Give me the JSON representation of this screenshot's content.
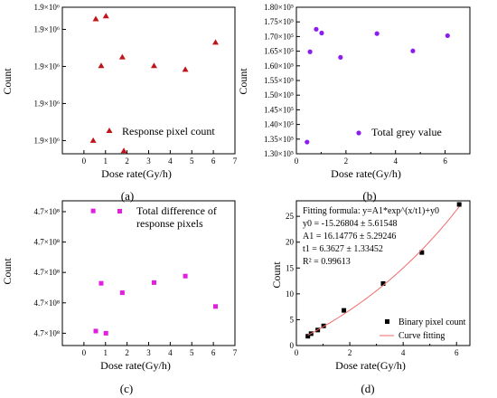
{
  "chart_data": [
    {
      "id": "a",
      "type": "scatter",
      "panel_label": "(a)",
      "xlabel": "Dose rate(Gy/h)",
      "ylabel": "Count",
      "xlim": [
        -1,
        7
      ],
      "xticks": [
        "0",
        "1",
        "2",
        "3",
        "4",
        "5",
        "6",
        "7"
      ],
      "ylim": [
        0,
        1
      ],
      "yticks": [
        {
          "v": 0.09,
          "label": "1.9×10⁶"
        },
        {
          "v": 0.343,
          "label": "1.9×10⁶"
        },
        {
          "v": 0.596,
          "label": "1.9×10⁶"
        },
        {
          "v": 0.849,
          "label": "1.9×10⁶"
        },
        {
          "v": 1.0,
          "label": "1.9×10⁶"
        }
      ],
      "marker": "triangle",
      "color": "#c0141b",
      "legend": "Response pixel count",
      "legend_position": "bottom-right",
      "points": [
        {
          "x": 0.43,
          "y": 0.09
        },
        {
          "x": 0.55,
          "y": 0.92
        },
        {
          "x": 0.8,
          "y": 0.6
        },
        {
          "x": 1.02,
          "y": 0.94
        },
        {
          "x": 1.78,
          "y": 0.66
        },
        {
          "x": 1.85,
          "y": 0.02
        },
        {
          "x": 3.25,
          "y": 0.6
        },
        {
          "x": 4.7,
          "y": 0.575
        },
        {
          "x": 6.1,
          "y": 0.76
        }
      ]
    },
    {
      "id": "b",
      "type": "scatter",
      "panel_label": "(b)",
      "xlabel": "Dose rate(Gy/h)",
      "ylabel": "Count",
      "xlim": [
        0,
        7
      ],
      "xticks": [
        "0",
        "2",
        "4",
        "6"
      ],
      "xtick_values": [
        0,
        2,
        4,
        6
      ],
      "ylim": [
        1.3,
        1.8
      ],
      "yticks": [
        {
          "v": 1.3,
          "label": "1.30×10⁵"
        },
        {
          "v": 1.35,
          "label": "1.35×10⁵"
        },
        {
          "v": 1.4,
          "label": "1.40×10⁵"
        },
        {
          "v": 1.45,
          "label": "1.45×10⁵"
        },
        {
          "v": 1.5,
          "label": "1.50×10⁵"
        },
        {
          "v": 1.55,
          "label": "1.55×10⁵"
        },
        {
          "v": 1.6,
          "label": "1.60×10⁵"
        },
        {
          "v": 1.65,
          "label": "1.65×10⁵"
        },
        {
          "v": 1.7,
          "label": "1.70×10⁵"
        },
        {
          "v": 1.75,
          "label": "1.75×10⁵"
        },
        {
          "v": 1.8,
          "label": "1.80×10⁵"
        }
      ],
      "marker": "circle",
      "color": "#8b1cf2",
      "legend": "Total grey value",
      "legend_position": "bottom-right",
      "points": [
        {
          "x": 0.43,
          "y": 1.34
        },
        {
          "x": 0.55,
          "y": 1.648
        },
        {
          "x": 0.8,
          "y": 1.725
        },
        {
          "x": 1.02,
          "y": 1.712
        },
        {
          "x": 1.78,
          "y": 1.629
        },
        {
          "x": 3.25,
          "y": 1.71
        },
        {
          "x": 4.7,
          "y": 1.651
        },
        {
          "x": 6.1,
          "y": 1.703
        }
      ]
    },
    {
      "id": "c",
      "type": "scatter",
      "panel_label": "(c)",
      "xlabel": "Dose rate(Gy/h)",
      "ylabel": "Count",
      "xlim": [
        -1,
        7
      ],
      "xticks": [
        "0",
        "1",
        "2",
        "3",
        "4",
        "5",
        "6",
        "7"
      ],
      "ylim": [
        0,
        1
      ],
      "yticks": [
        {
          "v": 0.085,
          "label": "4.7×10⁸"
        },
        {
          "v": 0.295,
          "label": "4.7×10⁸"
        },
        {
          "v": 0.505,
          "label": "4.7×10⁸"
        },
        {
          "v": 0.715,
          "label": "4.7×10⁸"
        },
        {
          "v": 0.925,
          "label": "4.7×10⁸"
        }
      ],
      "marker": "square",
      "color": "#e21ee0",
      "legend": "Total difference of response pixels",
      "legend_lines": [
        "Total difference of",
        "response pixels"
      ],
      "legend_position": "top-right",
      "points": [
        {
          "x": 0.43,
          "y": 0.93
        },
        {
          "x": 0.55,
          "y": 0.1
        },
        {
          "x": 0.8,
          "y": 0.43
        },
        {
          "x": 1.02,
          "y": 0.085
        },
        {
          "x": 1.78,
          "y": 0.365
        },
        {
          "x": 3.25,
          "y": 0.435
        },
        {
          "x": 4.7,
          "y": 0.48
        },
        {
          "x": 6.1,
          "y": 0.27
        }
      ]
    },
    {
      "id": "d",
      "type": "scatter",
      "panel_label": "(d)",
      "xlabel": "Dose rate(Gy/h)",
      "ylabel": "Count",
      "xlim": [
        0,
        6.5
      ],
      "xticks": [
        "0",
        "2",
        "4",
        "6"
      ],
      "xtick_values": [
        0,
        2,
        4,
        6
      ],
      "ylim": [
        0,
        28
      ],
      "yticks": [
        {
          "v": 0,
          "label": "0"
        },
        {
          "v": 5,
          "label": "5"
        },
        {
          "v": 10,
          "label": "10"
        },
        {
          "v": 15,
          "label": "15"
        },
        {
          "v": 20,
          "label": "20"
        },
        {
          "v": 25,
          "label": "25"
        }
      ],
      "series": [
        {
          "name": "Binary pixel count",
          "marker": "square",
          "color": "#000000",
          "points": [
            {
              "x": 0.43,
              "y": 1.8
            },
            {
              "x": 0.55,
              "y": 2.3
            },
            {
              "x": 0.8,
              "y": 3.0
            },
            {
              "x": 1.02,
              "y": 3.8
            },
            {
              "x": 1.78,
              "y": 6.8
            },
            {
              "x": 3.25,
              "y": 12.0
            },
            {
              "x": 4.7,
              "y": 18.0
            },
            {
              "x": 6.1,
              "y": 27.3
            }
          ]
        },
        {
          "name": "Curve fitting",
          "type": "line",
          "color": "#f06a6a",
          "fit": {
            "y0": -15.26804,
            "A1": 16.14776,
            "t1": 6.3627,
            "x_from": 0.43,
            "x_to": 6.1
          }
        }
      ],
      "legend_position": "bottom-right",
      "annotation_lines": [
        "Fitting formula: y=A1*exp^(x/t1)+y0",
        "y0 = -15.26804 ± 5.61548",
        "A1 = 16.14776 ± 5.29246",
        "t1 = 6.3627 ± 1.33452",
        "R² = 0.99613"
      ]
    }
  ]
}
